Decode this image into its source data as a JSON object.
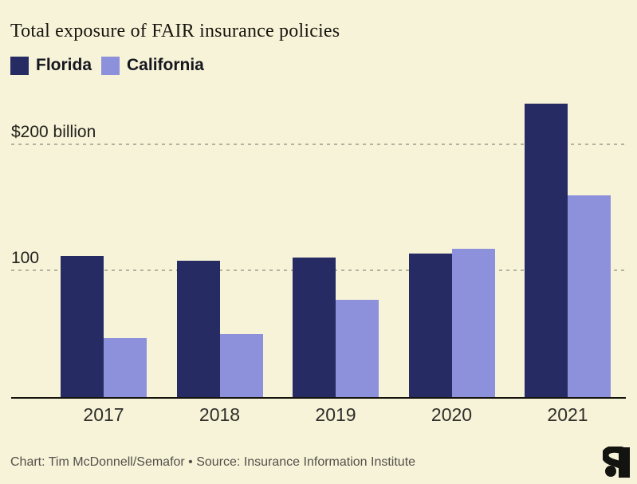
{
  "chart_data": {
    "type": "bar",
    "title": "Total exposure of FAIR insurance policies",
    "categories": [
      "2017",
      "2018",
      "2019",
      "2020",
      "2021"
    ],
    "series": [
      {
        "name": "Florida",
        "color": "#262b64",
        "values": [
          112,
          108,
          111,
          114,
          233
        ]
      },
      {
        "name": "California",
        "color": "#8d91dc",
        "values": [
          47,
          50,
          77,
          118,
          160
        ]
      }
    ],
    "unit": "billion USD",
    "xlabel": "",
    "ylabel": "",
    "ylim": [
      0,
      244
    ],
    "gridlines": [
      {
        "value": 100,
        "label": "100"
      },
      {
        "value": 200,
        "label": "$200 billion"
      }
    ],
    "grid": "horizontal-dashed",
    "legend_position": "top-left"
  },
  "footer": {
    "credit": "Chart: Tim McDonnell/Semafor • Source: Insurance Information Institute",
    "logo": "semafor-logo"
  },
  "colors": {
    "background": "#f7f3d8",
    "florida": "#262b64",
    "california": "#8d91dc",
    "axis": "#15130e",
    "gridline": "#b3b19f",
    "title_text": "#17150f",
    "tick_text": "#2f2e29",
    "grid_label_text": "#23221d",
    "legend_text": "#15161f",
    "footer_text": "#52504a",
    "logo": "#131310"
  }
}
